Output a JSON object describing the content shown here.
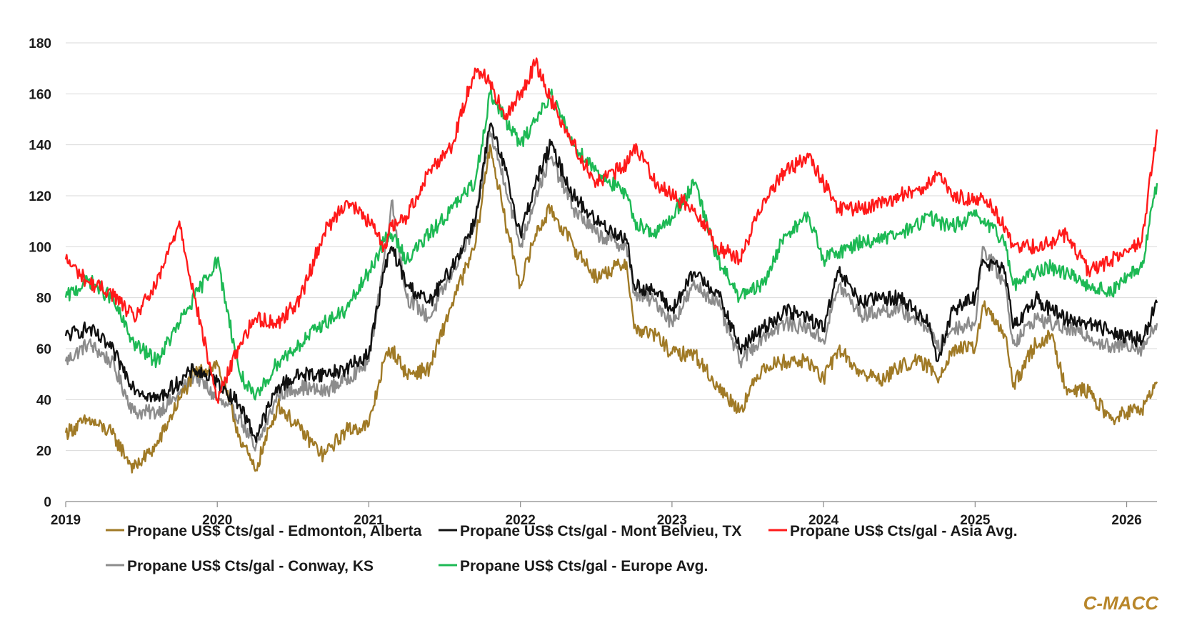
{
  "brand": "C-MACC",
  "colors": {
    "edmonton": "#a07a26",
    "mont_belvieu": "#111111",
    "asia": "#ff1a1a",
    "conway": "#8c8c8c",
    "europe": "#1db954"
  },
  "chart_data": {
    "type": "line",
    "title": "",
    "xlabel": "",
    "ylabel": "",
    "xlim": [
      2019.0,
      2026.2
    ],
    "ylim": [
      0,
      180
    ],
    "x_ticks": [
      "2019",
      "2020",
      "2021",
      "2022",
      "2023",
      "2024",
      "2025",
      "2026"
    ],
    "y_ticks": [
      "0",
      "20",
      "40",
      "60",
      "80",
      "100",
      "120",
      "140",
      "160",
      "180"
    ],
    "grid": "horizontal",
    "legend_position": "bottom",
    "series": [
      {
        "name": "Propane US$ Cts/gal - Edmonton, Alberta",
        "color_key": "edmonton",
        "x": [
          2019.0,
          2019.15,
          2019.3,
          2019.45,
          2019.6,
          2019.75,
          2019.85,
          2020.0,
          2020.15,
          2020.25,
          2020.4,
          2020.55,
          2020.7,
          2020.85,
          2021.0,
          2021.1,
          2021.15,
          2021.25,
          2021.4,
          2021.55,
          2021.7,
          2021.8,
          2021.9,
          2022.0,
          2022.1,
          2022.2,
          2022.35,
          2022.5,
          2022.7,
          2022.75,
          2022.9,
          2023.0,
          2023.15,
          2023.3,
          2023.45,
          2023.6,
          2023.75,
          2023.9,
          2024.0,
          2024.1,
          2024.25,
          2024.4,
          2024.5,
          2024.6,
          2024.7,
          2024.75,
          2024.85,
          2025.0,
          2025.05,
          2025.2,
          2025.25,
          2025.4,
          2025.5,
          2025.6,
          2025.75,
          2025.9,
          2026.0,
          2026.1,
          2026.2
        ],
        "y": [
          27,
          32,
          27,
          13,
          22,
          40,
          50,
          54,
          25,
          12,
          38,
          28,
          18,
          28,
          30,
          55,
          60,
          50,
          52,
          78,
          100,
          140,
          110,
          85,
          105,
          115,
          100,
          88,
          94,
          68,
          65,
          58,
          58,
          45,
          36,
          53,
          55,
          55,
          48,
          60,
          50,
          48,
          53,
          55,
          53,
          48,
          60,
          60,
          77,
          65,
          45,
          62,
          65,
          45,
          43,
          32,
          35,
          36,
          47
        ]
      },
      {
        "name": "Propane US$ Cts/gal - Mont Belvieu, TX",
        "color_key": "mont_belvieu",
        "x": [
          2019.0,
          2019.15,
          2019.3,
          2019.45,
          2019.6,
          2019.75,
          2019.85,
          2020.0,
          2020.15,
          2020.25,
          2020.4,
          2020.55,
          2020.7,
          2020.85,
          2021.0,
          2021.1,
          2021.15,
          2021.25,
          2021.4,
          2021.55,
          2021.7,
          2021.8,
          2021.9,
          2022.0,
          2022.1,
          2022.2,
          2022.35,
          2022.5,
          2022.7,
          2022.75,
          2022.9,
          2023.0,
          2023.15,
          2023.3,
          2023.45,
          2023.6,
          2023.75,
          2023.9,
          2024.0,
          2024.1,
          2024.25,
          2024.4,
          2024.5,
          2024.6,
          2024.7,
          2024.75,
          2024.85,
          2025.0,
          2025.05,
          2025.2,
          2025.25,
          2025.4,
          2025.5,
          2025.6,
          2025.75,
          2025.9,
          2026.0,
          2026.1,
          2026.2
        ],
        "y": [
          65,
          68,
          60,
          45,
          40,
          47,
          52,
          47,
          38,
          25,
          45,
          50,
          50,
          52,
          58,
          90,
          100,
          85,
          78,
          92,
          110,
          148,
          130,
          105,
          125,
          140,
          120,
          110,
          103,
          85,
          82,
          75,
          90,
          82,
          60,
          68,
          75,
          72,
          68,
          90,
          78,
          80,
          80,
          75,
          70,
          55,
          75,
          80,
          95,
          90,
          68,
          80,
          75,
          72,
          70,
          67,
          65,
          63,
          78
        ]
      },
      {
        "name": "Propane US$ Cts/gal - Asia Avg.",
        "color_key": "asia",
        "x": [
          2019.0,
          2019.15,
          2019.3,
          2019.45,
          2019.6,
          2019.75,
          2019.85,
          2020.0,
          2020.15,
          2020.25,
          2020.4,
          2020.55,
          2020.7,
          2020.85,
          2021.0,
          2021.1,
          2021.15,
          2021.25,
          2021.4,
          2021.55,
          2021.7,
          2021.8,
          2021.9,
          2022.0,
          2022.1,
          2022.2,
          2022.35,
          2022.5,
          2022.7,
          2022.75,
          2022.9,
          2023.0,
          2023.15,
          2023.3,
          2023.45,
          2023.6,
          2023.75,
          2023.9,
          2024.0,
          2024.1,
          2024.25,
          2024.4,
          2024.5,
          2024.6,
          2024.7,
          2024.75,
          2024.85,
          2025.0,
          2025.05,
          2025.2,
          2025.25,
          2025.4,
          2025.5,
          2025.6,
          2025.75,
          2025.9,
          2026.0,
          2026.1,
          2026.2
        ],
        "y": [
          95,
          86,
          82,
          72,
          85,
          110,
          80,
          40,
          62,
          72,
          70,
          80,
          105,
          118,
          110,
          100,
          108,
          112,
          130,
          140,
          170,
          165,
          150,
          160,
          172,
          158,
          140,
          125,
          132,
          140,
          125,
          120,
          115,
          100,
          95,
          118,
          130,
          135,
          125,
          115,
          115,
          117,
          120,
          122,
          125,
          128,
          120,
          118,
          120,
          108,
          100,
          100,
          102,
          105,
          90,
          95,
          98,
          102,
          146
        ]
      },
      {
        "name": "Propane US$ Cts/gal - Conway, KS",
        "color_key": "conway",
        "x": [
          2019.0,
          2019.15,
          2019.3,
          2019.45,
          2019.6,
          2019.75,
          2019.85,
          2020.0,
          2020.15,
          2020.25,
          2020.4,
          2020.55,
          2020.7,
          2020.85,
          2021.0,
          2021.1,
          2021.15,
          2021.25,
          2021.4,
          2021.55,
          2021.7,
          2021.8,
          2021.9,
          2022.0,
          2022.1,
          2022.2,
          2022.35,
          2022.5,
          2022.7,
          2022.75,
          2022.9,
          2023.0,
          2023.15,
          2023.3,
          2023.45,
          2023.6,
          2023.75,
          2023.9,
          2024.0,
          2024.1,
          2024.25,
          2024.4,
          2024.5,
          2024.6,
          2024.7,
          2024.75,
          2024.85,
          2025.0,
          2025.05,
          2025.2,
          2025.25,
          2025.4,
          2025.5,
          2025.6,
          2025.75,
          2025.9,
          2026.0,
          2026.1,
          2026.2
        ],
        "y": [
          55,
          62,
          55,
          35,
          35,
          42,
          50,
          40,
          33,
          20,
          42,
          45,
          43,
          48,
          55,
          95,
          118,
          80,
          72,
          90,
          108,
          145,
          125,
          100,
          120,
          135,
          115,
          105,
          100,
          82,
          78,
          70,
          85,
          78,
          55,
          65,
          70,
          68,
          63,
          85,
          73,
          75,
          75,
          72,
          68,
          60,
          68,
          70,
          100,
          85,
          62,
          72,
          70,
          68,
          65,
          60,
          62,
          60,
          70
        ]
      },
      {
        "name": "Propane US$ Cts/gal - Europe Avg.",
        "color_key": "europe",
        "x": [
          2019.0,
          2019.15,
          2019.3,
          2019.45,
          2019.6,
          2019.75,
          2019.85,
          2020.0,
          2020.15,
          2020.25,
          2020.4,
          2020.55,
          2020.7,
          2020.85,
          2021.0,
          2021.1,
          2021.15,
          2021.25,
          2021.4,
          2021.55,
          2021.7,
          2021.8,
          2021.9,
          2022.0,
          2022.1,
          2022.2,
          2022.35,
          2022.5,
          2022.7,
          2022.75,
          2022.9,
          2023.0,
          2023.15,
          2023.3,
          2023.45,
          2023.6,
          2023.75,
          2023.9,
          2024.0,
          2024.1,
          2024.25,
          2024.4,
          2024.5,
          2024.6,
          2024.7,
          2024.75,
          2024.85,
          2025.0,
          2025.05,
          2025.2,
          2025.25,
          2025.4,
          2025.5,
          2025.6,
          2025.75,
          2025.9,
          2026.0,
          2026.1,
          2026.2
        ],
        "y": [
          80,
          87,
          80,
          62,
          55,
          70,
          80,
          95,
          50,
          40,
          55,
          62,
          70,
          75,
          90,
          102,
          105,
          95,
          105,
          115,
          125,
          160,
          150,
          140,
          150,
          160,
          140,
          130,
          120,
          110,
          105,
          112,
          125,
          95,
          80,
          85,
          105,
          112,
          95,
          98,
          102,
          103,
          105,
          108,
          112,
          110,
          108,
          112,
          110,
          102,
          85,
          90,
          92,
          90,
          85,
          82,
          88,
          92,
          125
        ]
      }
    ]
  }
}
